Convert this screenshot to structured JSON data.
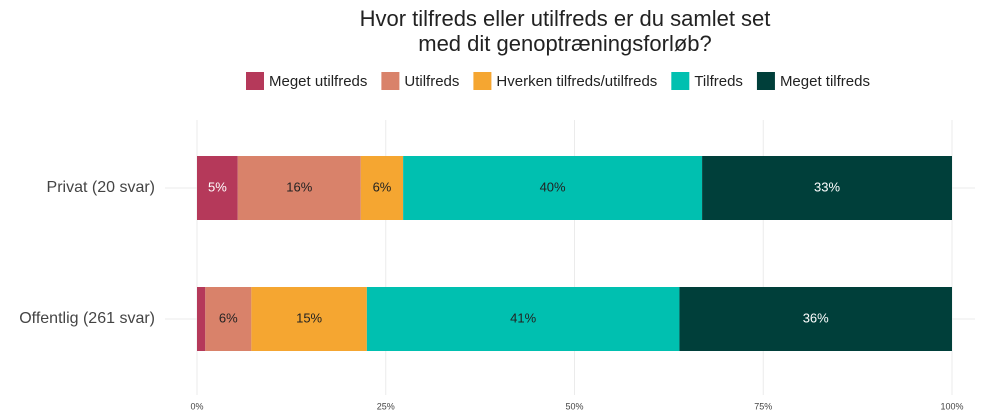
{
  "chart_data": {
    "type": "stacked-barh",
    "title": [
      "Hvor tilfreds eller utilfreds er du samlet set",
      "med dit genoptræningsforløb?"
    ],
    "categories": [
      "Privat (20 svar)",
      "Offentlig (261 svar)"
    ],
    "series": [
      {
        "name": "Meget utilfreds",
        "color": "#b5395a",
        "values": [
          5.4,
          1.1
        ],
        "value_labels": [
          "5%",
          null
        ]
      },
      {
        "name": "Utilfreds",
        "color": "#d9826a",
        "values": [
          16.3,
          6.1
        ],
        "value_labels": [
          "16%",
          "6%"
        ]
      },
      {
        "name": "Hverken tilfreds/utilfreds",
        "color": "#f5a631",
        "values": [
          5.6,
          15.3
        ],
        "value_labels": [
          "6%",
          "15%"
        ]
      },
      {
        "name": "Tilfreds",
        "color": "#00c0b0",
        "values": [
          39.6,
          41.4
        ],
        "value_labels": [
          "40%",
          "41%"
        ]
      },
      {
        "name": "Meget tilfreds",
        "color": "#003f3a",
        "values": [
          33.1,
          36.1
        ],
        "value_labels": [
          "33%",
          "36%"
        ]
      }
    ],
    "xlim": [
      0,
      100
    ],
    "xticks": [
      {
        "value": 0,
        "label": "0%"
      },
      {
        "value": 25,
        "label": "25%"
      },
      {
        "value": 50,
        "label": "50%"
      },
      {
        "value": 75,
        "label": "75%"
      },
      {
        "value": 100,
        "label": "100%"
      }
    ],
    "grid": true,
    "legend": "top"
  }
}
